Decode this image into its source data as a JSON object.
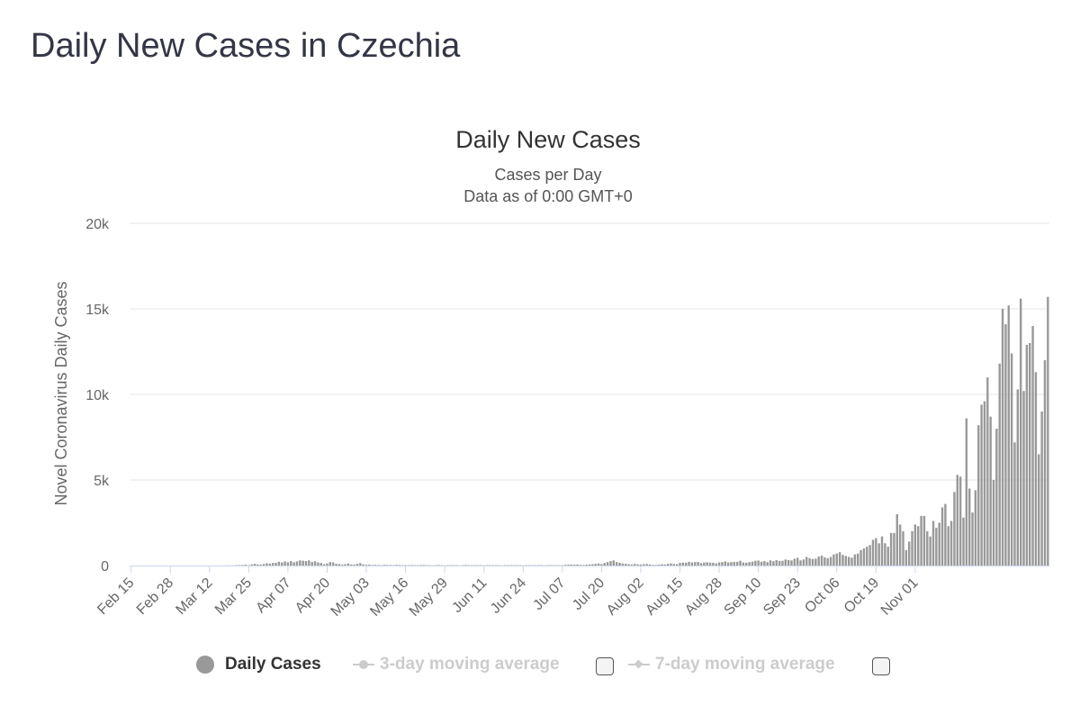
{
  "page": {
    "title": "Daily New Cases in Czechia"
  },
  "chart_data": {
    "type": "bar",
    "title": "Daily New Cases",
    "subtitle": "Cases per Day",
    "subtitle2": "Data as of 0:00 GMT+0",
    "ylabel": "Novel Coronavirus Daily Cases",
    "xlabel": "",
    "ylim": [
      0,
      20000
    ],
    "yticks": [
      0,
      5000,
      10000,
      15000,
      20000
    ],
    "ytick_labels": [
      "0",
      "5k",
      "10k",
      "15k",
      "20k"
    ],
    "xtick_labels": [
      "Feb 15",
      "Feb 28",
      "Mar 12",
      "Mar 25",
      "Apr 07",
      "Apr 20",
      "May 03",
      "May 16",
      "May 29",
      "Jun 11",
      "Jun 24",
      "Jul 07",
      "Jul 20",
      "Aug 02",
      "Aug 15",
      "Aug 28",
      "Sep 10",
      "Sep 23",
      "Oct 06",
      "Oct 19",
      "Nov 01"
    ],
    "tick_interval_days": 13,
    "grid": true,
    "legend_position": "bottom",
    "colors": {
      "bars": "#999999",
      "grid": "#e6e6e6",
      "axis": "#ccd6eb"
    },
    "series": [
      {
        "name": "Daily Cases",
        "start": "Feb 15",
        "values": [
          0,
          0,
          0,
          0,
          0,
          0,
          0,
          0,
          0,
          0,
          0,
          0,
          0,
          0,
          0,
          0,
          3,
          0,
          0,
          2,
          0,
          0,
          3,
          0,
          0,
          0,
          0,
          0,
          0,
          0,
          2,
          1,
          10,
          6,
          7,
          20,
          30,
          33,
          47,
          20,
          65,
          100,
          60,
          50,
          90,
          130,
          110,
          150,
          160,
          220,
          180,
          240,
          190,
          260,
          190,
          240,
          300,
          280,
          260,
          300,
          210,
          250,
          180,
          150,
          80,
          120,
          200,
          180,
          100,
          90,
          50,
          80,
          120,
          60,
          50,
          100,
          140,
          70,
          40,
          50,
          30,
          40,
          30,
          20,
          40,
          30,
          30,
          20,
          40,
          30,
          20,
          20,
          20,
          30,
          20,
          20,
          30,
          30,
          20,
          20,
          10,
          20,
          30,
          20,
          10,
          20,
          20,
          20,
          20,
          10,
          20,
          30,
          20,
          20,
          20,
          20,
          20,
          10,
          20,
          20,
          20,
          20,
          20,
          10,
          20,
          20,
          20,
          20,
          20,
          20,
          10,
          20,
          20,
          20,
          20,
          20,
          20,
          10,
          20,
          20,
          20,
          20,
          20,
          20,
          40,
          50,
          60,
          50,
          60,
          40,
          30,
          50,
          60,
          80,
          100,
          120,
          80,
          150,
          200,
          260,
          300,
          200,
          160,
          120,
          100,
          80,
          60,
          90,
          70,
          60,
          80,
          90,
          60,
          40,
          30,
          50,
          70,
          60,
          100,
          120,
          90,
          80,
          150,
          170,
          160,
          220,
          180,
          200,
          210,
          140,
          180,
          190,
          170,
          160,
          120,
          180,
          200,
          240,
          180,
          200,
          210,
          220,
          280,
          180,
          160,
          200,
          230,
          280,
          290,
          220,
          260,
          200,
          300,
          250,
          310,
          270,
          280,
          350,
          320,
          300,
          400,
          450,
          300,
          350,
          500,
          420,
          380,
          400,
          520,
          580,
          480,
          420,
          500,
          650,
          700,
          780,
          620,
          560,
          500,
          460,
          650,
          700,
          900,
          1000,
          1100,
          1200,
          1500,
          1600,
          1300,
          1700,
          1300,
          1100,
          1900,
          1900,
          3000,
          2400,
          2000,
          900,
          1400,
          2000,
          2400,
          2300,
          2900,
          2900,
          2000,
          1700,
          2600,
          2200,
          2500,
          3400,
          3600,
          2300,
          2600,
          4300,
          5300,
          5200,
          2800,
          8600,
          4500,
          3100,
          4400,
          8200,
          9400,
          9600,
          11000,
          8700,
          5000,
          8000,
          11800,
          15000,
          14100,
          15200,
          12400,
          7200,
          10300,
          15600,
          10200,
          12900,
          13000,
          14000,
          11300,
          6500,
          9000,
          12000,
          15700
        ]
      }
    ]
  },
  "legend": {
    "items": [
      {
        "label": "Daily Cases",
        "active": true
      },
      {
        "label": "3-day moving average",
        "active": false
      },
      {
        "label": "7-day moving average",
        "active": false
      }
    ]
  }
}
